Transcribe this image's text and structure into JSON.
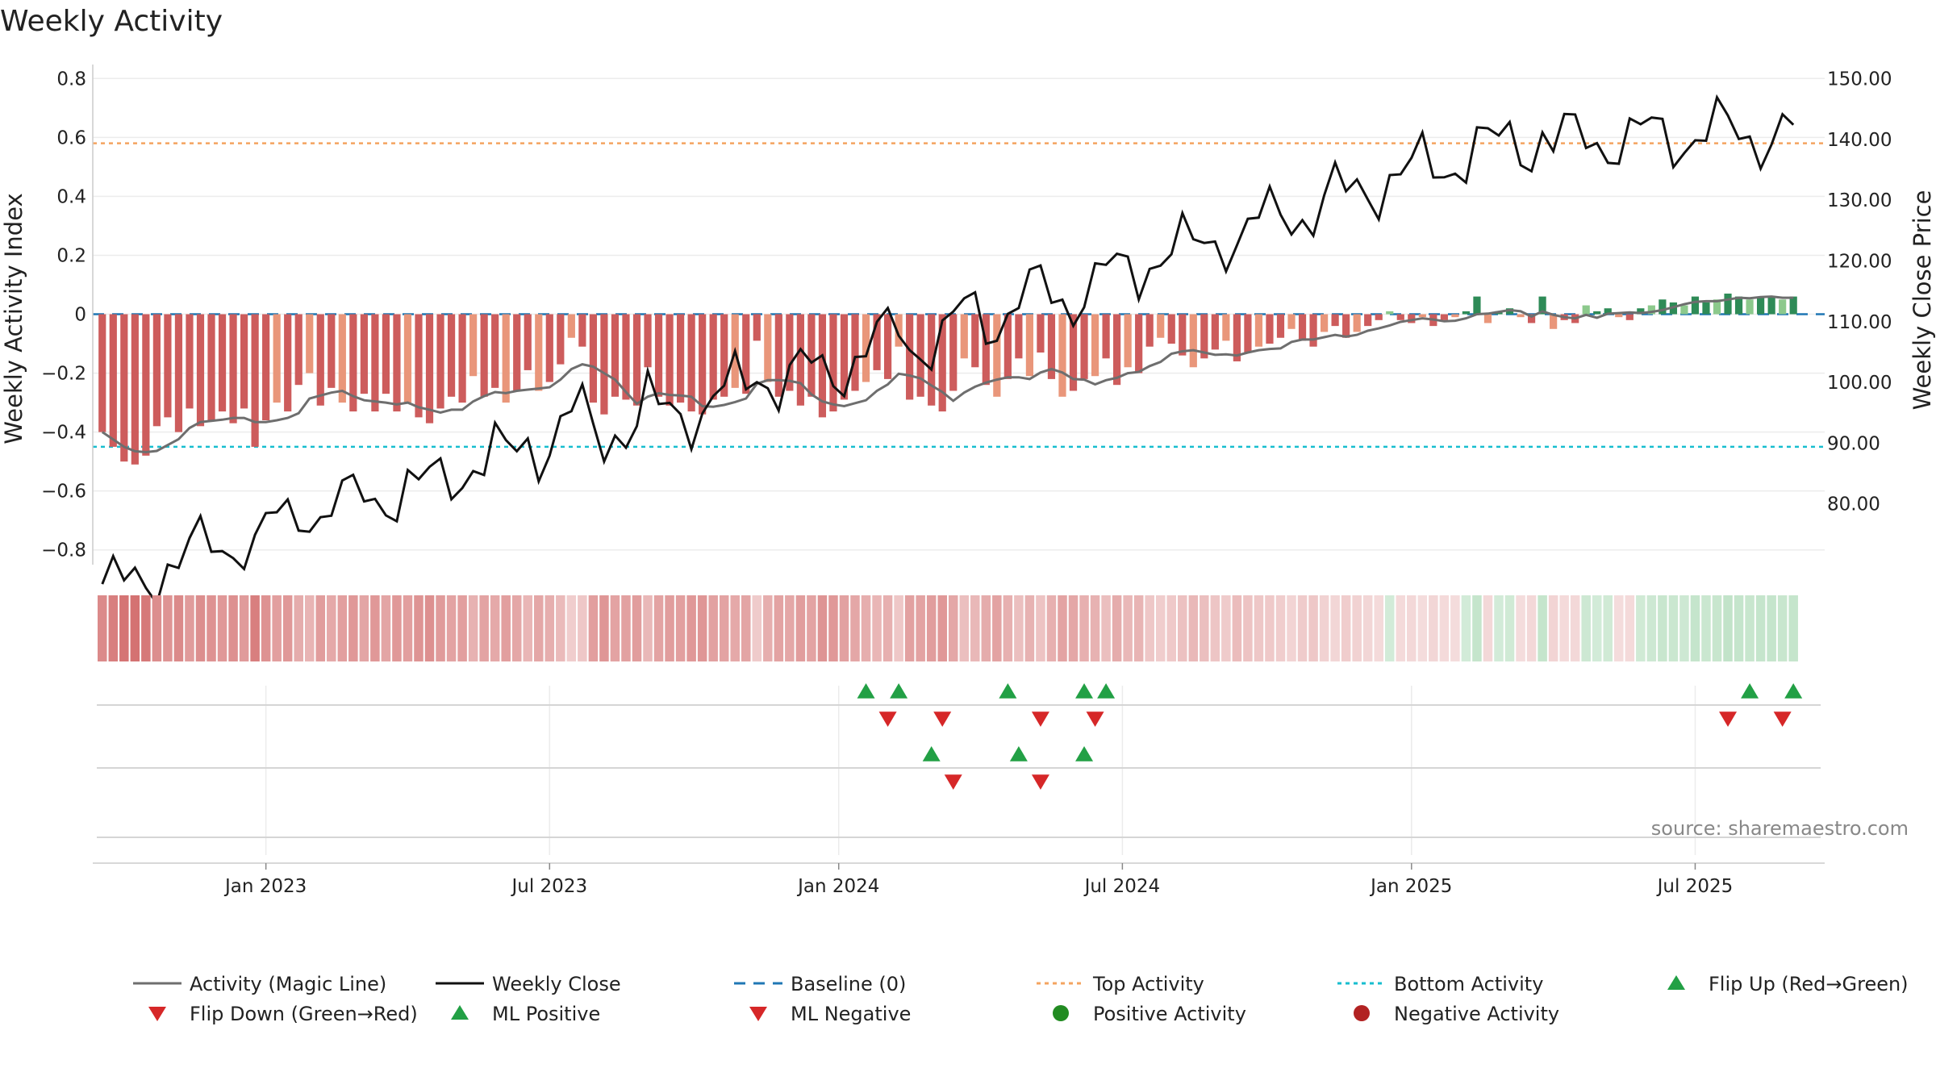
{
  "chart_data": {
    "type": "bar",
    "title": "Weekly Activity",
    "ylabel": "Weekly Activity Index",
    "y2label": "Weekly Close Price",
    "source": "source: sharemaestro.com",
    "ylim": [
      -0.85,
      0.82
    ],
    "y2lim": [
      70.0,
      151.0
    ],
    "yticks": [
      "0.8",
      "0.6",
      "0.4",
      "0.2",
      "0",
      "−0.2",
      "−0.4",
      "−0.6",
      "−0.8"
    ],
    "ytick_values": [
      0.8,
      0.6,
      0.4,
      0.2,
      0,
      -0.2,
      -0.4,
      -0.6,
      -0.8
    ],
    "y2ticks": [
      "150.00",
      "140.00",
      "130.00",
      "120.00",
      "110.00",
      "100.00",
      "90.00",
      "80.00"
    ],
    "y2tick_values": [
      150,
      140,
      130,
      120,
      110,
      100,
      90,
      80
    ],
    "xticks": [
      "Jan 2023",
      "Jul 2023",
      "Jan 2024",
      "Jul 2024",
      "Jan 2025",
      "Jul 2025"
    ],
    "xtick_weeks": [
      15,
      41,
      67.5,
      93.5,
      120,
      146
    ],
    "n_weeks": 158,
    "top_activity": 0.58,
    "bottom_activity": -0.45,
    "colors": {
      "strong_pos": "#2e8b57",
      "weak_pos": "#8cc98c",
      "strong_neg": "#cd5c5c",
      "weak_neg": "#e9967a",
      "magic": "#6e6e6e",
      "close": "#111111",
      "baseline": "#1f77b4",
      "top": "#f4a460",
      "bottom": "#17becf",
      "up_marker": "#22a045",
      "down_marker": "#d62728",
      "pos_dot": "#228b22",
      "neg_dot": "#b22222"
    },
    "series": [
      {
        "name": "Weekly Activity Index",
        "values": [
          -0.4,
          -0.45,
          -0.5,
          -0.51,
          -0.48,
          -0.38,
          -0.35,
          -0.4,
          -0.32,
          -0.38,
          -0.36,
          -0.33,
          -0.37,
          -0.32,
          -0.45,
          -0.36,
          -0.3,
          -0.33,
          -0.24,
          -0.2,
          -0.31,
          -0.25,
          -0.3,
          -0.33,
          -0.27,
          -0.33,
          -0.27,
          -0.33,
          -0.3,
          -0.35,
          -0.37,
          -0.32,
          -0.28,
          -0.3,
          -0.21,
          -0.28,
          -0.25,
          -0.3,
          -0.26,
          -0.19,
          -0.26,
          -0.23,
          -0.17,
          -0.08,
          -0.11,
          -0.3,
          -0.34,
          -0.28,
          -0.29,
          -0.31,
          -0.18,
          -0.28,
          -0.31,
          -0.3,
          -0.33,
          -0.34,
          -0.29,
          -0.28,
          -0.25,
          -0.27,
          -0.09,
          -0.23,
          -0.28,
          -0.26,
          -0.31,
          -0.28,
          -0.35,
          -0.33,
          -0.29,
          -0.26,
          -0.23,
          -0.19,
          -0.22,
          -0.11,
          -0.29,
          -0.28,
          -0.31,
          -0.33,
          -0.26,
          -0.15,
          -0.18,
          -0.24,
          -0.28,
          -0.22,
          -0.15,
          -0.21,
          -0.13,
          -0.22,
          -0.28,
          -0.26,
          -0.22,
          -0.21,
          -0.15,
          -0.24,
          -0.18,
          -0.2,
          -0.11,
          -0.08,
          -0.1,
          -0.14,
          -0.18,
          -0.15,
          -0.12,
          -0.09,
          -0.16,
          -0.13,
          -0.11,
          -0.1,
          -0.08,
          -0.05,
          -0.09,
          -0.11,
          -0.06,
          -0.04,
          -0.08,
          -0.06,
          -0.04,
          -0.02,
          0.01,
          -0.02,
          -0.03,
          -0.01,
          -0.04,
          -0.02,
          -0.01,
          0.01,
          0.06,
          -0.03,
          0.01,
          0.02,
          -0.01,
          -0.03,
          0.06,
          -0.05,
          -0.02,
          -0.03,
          0.03,
          0.01,
          0.02,
          -0.01,
          -0.02,
          0.02,
          0.03,
          0.05,
          0.04,
          0.03,
          0.06,
          0.04,
          0.05,
          0.07,
          0.06,
          0.05,
          0.06,
          0.06,
          0.05,
          0.06
        ]
      }
    ],
    "legend": [
      "Activity (Magic Line)",
      "Weekly Close",
      "Baseline (0)",
      "Top Activity",
      "Bottom Activity",
      "Flip Up (Red→Green)",
      "Flip Down (Green→Red)",
      "ML Positive",
      "ML Negative",
      "Positive Activity",
      "Negative Activity"
    ],
    "flip_up_weeks": [
      70,
      73,
      83,
      90,
      92,
      151,
      155
    ],
    "flip_down_weeks": [
      72,
      77,
      86,
      91,
      149,
      154
    ],
    "ml_positive_weeks": [
      76,
      84,
      90
    ],
    "ml_negative_weeks": [
      78,
      86
    ]
  }
}
